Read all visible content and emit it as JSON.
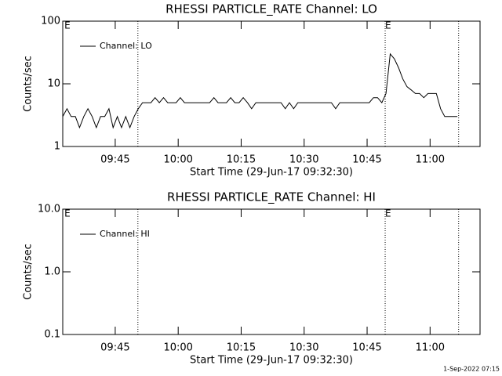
{
  "chart_data": [
    {
      "type": "line",
      "title": "RHESSI PARTICLE_RATE Channel: LO",
      "xlabel": "Start Time (29-Jun-17 09:32:30)",
      "ylabel": "Counts/sec",
      "log_y": true,
      "ylim": [
        1,
        100
      ],
      "yticks": [
        1,
        10,
        100
      ],
      "xlim": [
        0,
        99.4
      ],
      "xticks": [
        {
          "value": 12.5,
          "label": "09:45"
        },
        {
          "value": 27.5,
          "label": "10:00"
        },
        {
          "value": 42.5,
          "label": "10:15"
        },
        {
          "value": 57.5,
          "label": "10:30"
        },
        {
          "value": 72.5,
          "label": "10:45"
        },
        {
          "value": 87.5,
          "label": "11:00"
        }
      ],
      "vlines": [
        17.9,
        76.8,
        94.3
      ],
      "annotations": [
        {
          "text": "E",
          "x": 0.4
        },
        {
          "text": "E",
          "x": 76.8
        }
      ],
      "x": [
        0,
        1,
        2,
        3,
        4,
        5,
        6,
        7,
        8,
        9,
        10,
        11,
        12,
        13,
        14,
        15,
        16,
        17,
        18,
        19,
        20,
        21,
        22,
        23,
        24,
        25,
        26,
        27,
        28,
        29,
        30,
        31,
        32,
        33,
        34,
        35,
        36,
        37,
        38,
        39,
        40,
        41,
        42,
        43,
        44,
        45,
        46,
        47,
        48,
        49,
        50,
        51,
        52,
        53,
        54,
        55,
        56,
        57,
        58,
        59,
        60,
        61,
        62,
        63,
        64,
        65,
        66,
        67,
        68,
        69,
        70,
        71,
        72,
        73,
        74,
        75,
        76,
        77,
        78,
        79,
        80,
        81,
        82,
        83,
        84,
        85,
        86,
        87,
        88,
        89,
        90,
        91,
        92,
        93,
        94
      ],
      "series": [
        {
          "name": "Channel: LO",
          "color": "#000000",
          "values": [
            3,
            4,
            3,
            3,
            2,
            3,
            4,
            3,
            2,
            3,
            3,
            4,
            2,
            3,
            2,
            3,
            2,
            3,
            4,
            5,
            5,
            5,
            6,
            5,
            6,
            5,
            5,
            5,
            6,
            5,
            5,
            5,
            5,
            5,
            5,
            5,
            6,
            5,
            5,
            5,
            6,
            5,
            5,
            6,
            5,
            4,
            5,
            5,
            5,
            5,
            5,
            5,
            5,
            4,
            5,
            4,
            5,
            5,
            5,
            5,
            5,
            5,
            5,
            5,
            5,
            4,
            5,
            5,
            5,
            5,
            5,
            5,
            5,
            5,
            6,
            6,
            5,
            7,
            30,
            25,
            18,
            12,
            9,
            8,
            7,
            7,
            6,
            7,
            7,
            7,
            4,
            3,
            3,
            3,
            3
          ]
        }
      ]
    },
    {
      "type": "line",
      "title": "RHESSI PARTICLE_RATE Channel: HI",
      "xlabel": "Start Time (29-Jun-17 09:32:30)",
      "ylabel": "Counts/sec",
      "log_y": true,
      "ylim": [
        0.1,
        10
      ],
      "yticks": [
        0.1,
        {
          "value": 1,
          "label": "1.0"
        },
        {
          "value": 10,
          "label": "10.0"
        }
      ],
      "xlim": [
        0,
        99.4
      ],
      "xticks": [
        {
          "value": 12.5,
          "label": "09:45"
        },
        {
          "value": 27.5,
          "label": "10:00"
        },
        {
          "value": 42.5,
          "label": "10:15"
        },
        {
          "value": 57.5,
          "label": "10:30"
        },
        {
          "value": 72.5,
          "label": "10:45"
        },
        {
          "value": 87.5,
          "label": "11:00"
        }
      ],
      "vlines": [
        17.9,
        76.8,
        94.3
      ],
      "annotations": [
        {
          "text": "E",
          "x": 0.4
        },
        {
          "text": "E",
          "x": 76.8
        }
      ],
      "x": [],
      "series": [
        {
          "name": "Channel: HI",
          "color": "#000000",
          "values": []
        }
      ]
    }
  ],
  "timestamp": "1-Sep-2022 07:15"
}
